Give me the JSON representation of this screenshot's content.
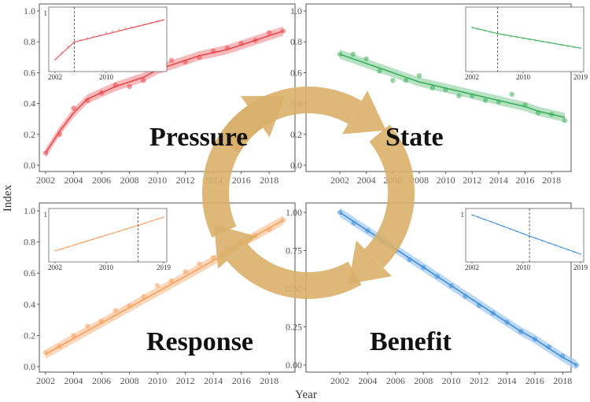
{
  "figure": {
    "ylabel": "Index",
    "xlabel": "Year"
  },
  "cycle_color": "#D9B06A",
  "chart_data": [
    {
      "id": "pressure",
      "type": "line",
      "title": "Pressure",
      "color": "#E8474C",
      "band": "#F4A3A6",
      "x": [
        2002,
        2003,
        2004,
        2005,
        2006,
        2007,
        2008,
        2009,
        2010,
        2011,
        2012,
        2013,
        2014,
        2015,
        2016,
        2017,
        2018,
        2019
      ],
      "points": [
        0.08,
        0.2,
        0.37,
        0.42,
        0.47,
        0.52,
        0.51,
        0.55,
        0.66,
        0.68,
        0.67,
        0.7,
        0.74,
        0.76,
        0.79,
        0.81,
        0.86,
        0.87
      ],
      "fit": [
        0.08,
        0.22,
        0.34,
        0.43,
        0.47,
        0.51,
        0.54,
        0.57,
        0.62,
        0.65,
        0.68,
        0.71,
        0.73,
        0.75,
        0.78,
        0.81,
        0.84,
        0.87
      ],
      "xlim": [
        2002,
        2019
      ],
      "ylim": [
        0,
        1.0
      ],
      "yticks": [
        "0.0",
        "0.2",
        "0.4",
        "0.6",
        "0.8",
        "1.0"
      ],
      "xticks": [
        "2002",
        "2004",
        "2006",
        "2008",
        "2010",
        "2012",
        "2014",
        "2016",
        "2018"
      ],
      "inset": {
        "xticks": [
          "2002",
          "2010"
        ],
        "ytick": "1",
        "break_year": 2005,
        "seg1": [
          [
            2002,
            0.08
          ],
          [
            2005,
            0.43
          ]
        ],
        "seg2": [
          [
            2005,
            0.43
          ],
          [
            2019,
            0.87
          ]
        ]
      }
    },
    {
      "id": "state",
      "type": "line",
      "title": "State",
      "color": "#3BAE5A",
      "band": "#9FDAB0",
      "x": [
        2002,
        2003,
        2004,
        2005,
        2006,
        2007,
        2008,
        2009,
        2010,
        2011,
        2012,
        2013,
        2014,
        2015,
        2016,
        2017,
        2018,
        2019
      ],
      "points": [
        0.72,
        0.72,
        0.69,
        0.61,
        0.55,
        0.55,
        0.58,
        0.5,
        0.49,
        0.45,
        0.45,
        0.42,
        0.41,
        0.46,
        0.39,
        0.34,
        0.33,
        0.29
      ],
      "fit": [
        0.72,
        0.69,
        0.66,
        0.63,
        0.6,
        0.57,
        0.54,
        0.52,
        0.5,
        0.48,
        0.46,
        0.44,
        0.42,
        0.4,
        0.38,
        0.35,
        0.33,
        0.31
      ],
      "xlim": [
        2002,
        2019
      ],
      "ylim": [
        0,
        1.0
      ],
      "yticks": [
        "0.0",
        "0.2",
        "0.4",
        "0.6",
        "0.8",
        "1.0"
      ],
      "xticks": [
        "2002",
        "2004",
        "2006",
        "2008",
        "2010",
        "2012",
        "2014",
        "2016",
        "2018"
      ],
      "inset": {
        "xticks": [
          "2002",
          "2010",
          "2019"
        ],
        "ytick": "",
        "break_year": 2006,
        "seg1": [
          [
            2002,
            0.72
          ],
          [
            2006,
            0.6
          ]
        ],
        "seg2": [
          [
            2006,
            0.6
          ],
          [
            2019,
            0.31
          ]
        ]
      }
    },
    {
      "id": "response",
      "type": "line",
      "title": "Response",
      "color": "#F5A05D",
      "band": "#FAC9A2",
      "x": [
        2002,
        2003,
        2004,
        2005,
        2006,
        2007,
        2008,
        2009,
        2010,
        2011,
        2012,
        2013,
        2014,
        2015,
        2016,
        2017,
        2018,
        2019
      ],
      "points": [
        0.09,
        0.13,
        0.2,
        0.26,
        0.29,
        0.36,
        0.39,
        0.45,
        0.52,
        0.55,
        0.61,
        0.66,
        0.7,
        0.76,
        0.8,
        0.84,
        0.88,
        0.94
      ],
      "fit": [
        0.08,
        0.13,
        0.18,
        0.23,
        0.28,
        0.33,
        0.38,
        0.43,
        0.48,
        0.53,
        0.58,
        0.63,
        0.68,
        0.73,
        0.79,
        0.84,
        0.89,
        0.94
      ],
      "xlim": [
        2002,
        2019
      ],
      "ylim": [
        0,
        1.0
      ],
      "yticks": [
        "0.0",
        "0.2",
        "0.4",
        "0.6",
        "0.8",
        "1.0"
      ],
      "xticks": [
        "2002",
        "2004",
        "2006",
        "2008",
        "2010",
        "2012",
        "2014",
        "2016",
        "2018"
      ],
      "inset": {
        "xticks": [
          "2002",
          "2010",
          "2019"
        ],
        "ytick": "1",
        "break_year": 2015,
        "seg1": [
          [
            2002,
            0.08
          ],
          [
            2015,
            0.73
          ]
        ],
        "seg2": [
          [
            2015,
            0.73
          ],
          [
            2019,
            0.94
          ]
        ]
      }
    },
    {
      "id": "benefit",
      "type": "line",
      "title": "Benefit",
      "color": "#3F8FD8",
      "band": "#A6CBEE",
      "x": [
        2002,
        2003,
        2004,
        2005,
        2006,
        2007,
        2008,
        2009,
        2010,
        2011,
        2012,
        2013,
        2014,
        2015,
        2016,
        2017,
        2018,
        2019
      ],
      "points": [
        1.0,
        0.93,
        0.88,
        0.81,
        0.75,
        0.69,
        0.64,
        0.58,
        0.52,
        0.45,
        0.39,
        0.34,
        0.28,
        0.22,
        0.17,
        0.12,
        0.06,
        0.0
      ],
      "fit": [
        1.0,
        0.94,
        0.88,
        0.82,
        0.76,
        0.7,
        0.64,
        0.58,
        0.52,
        0.46,
        0.4,
        0.34,
        0.28,
        0.22,
        0.17,
        0.11,
        0.05,
        0.0
      ],
      "xlim": [
        2002,
        2019
      ],
      "ylim": [
        0,
        1.0
      ],
      "yticks": [
        "0.00",
        "0.25",
        "0.50",
        "0.75",
        "1.00"
      ],
      "xticks": [
        "2002",
        "2004",
        "2006",
        "2008",
        "2010",
        "2012",
        "2014",
        "2016",
        "2018"
      ],
      "inset": {
        "xticks": [
          "2002",
          "2010",
          "2019"
        ],
        "ytick": "1",
        "break_year": 2011,
        "seg1": [
          [
            2002,
            1.0
          ],
          [
            2011,
            0.46
          ]
        ],
        "seg2": [
          [
            2011,
            0.46
          ],
          [
            2019,
            0.0
          ]
        ]
      }
    }
  ]
}
